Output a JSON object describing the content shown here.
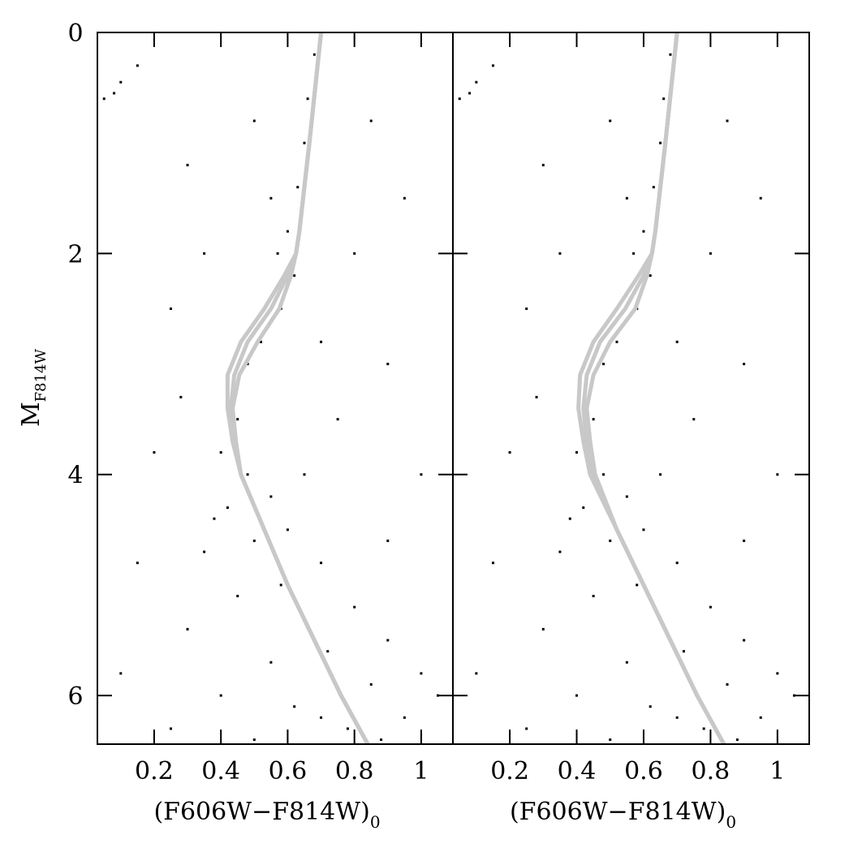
{
  "chart_data": [
    {
      "type": "scatter",
      "xlabel": "(F606W−F814W)",
      "xlabel_sub": "0",
      "ylabel": "M",
      "ylabel_sub": "F814W",
      "xlim": [
        0.03,
        1.095
      ],
      "ylim": [
        6.44,
        0
      ],
      "xticks": [
        0.2,
        0.4,
        0.6,
        0.8,
        1
      ],
      "yticks": [
        0,
        2,
        4,
        6
      ],
      "ytick_labels": true,
      "color": "#000000",
      "x": [
        0.45,
        0.4,
        0.48,
        0.55,
        0.42,
        0.6,
        0.5,
        0.35,
        0.7,
        0.58,
        0.45,
        0.8,
        0.65,
        0.3,
        0.9,
        0.72,
        0.55,
        1.0,
        0.85,
        0.4,
        0.62,
        0.95,
        0.78,
        0.25,
        1.05,
        0.5,
        0.88,
        0.7,
        0.52,
        0.48,
        0.58,
        0.62,
        0.6,
        0.63,
        0.65,
        0.66,
        0.68,
        0.57,
        0.55,
        0.05,
        0.1,
        0.15,
        0.08,
        0.25,
        0.8,
        0.9,
        0.3,
        0.85,
        0.2,
        1.0,
        0.15,
        0.75,
        0.35,
        0.95,
        0.5,
        0.1,
        0.28,
        0.7,
        0.65,
        0.38,
        0.9
      ],
      "y": [
        3.5,
        3.8,
        4.0,
        4.2,
        4.3,
        4.5,
        4.6,
        4.7,
        4.8,
        5.0,
        5.1,
        5.2,
        5.3,
        5.4,
        5.5,
        5.6,
        5.7,
        5.8,
        5.9,
        6.0,
        6.1,
        6.2,
        6.3,
        6.3,
        6.0,
        6.4,
        6.4,
        6.2,
        2.8,
        3.0,
        2.5,
        2.2,
        1.8,
        1.4,
        1.0,
        0.6,
        0.2,
        2.0,
        1.5,
        0.6,
        0.45,
        0.3,
        0.55,
        2.5,
        2.0,
        3.0,
        1.2,
        0.8,
        3.8,
        4.0,
        4.8,
        3.5,
        2.0,
        1.5,
        0.8,
        5.8,
        3.3,
        2.8,
        4.0,
        4.4,
        4.6
      ],
      "lines": [
        {
          "color": "#c8c8c8",
          "x": [
            0.7,
            0.665,
            0.635,
            0.625,
            0.59,
            0.53,
            0.46,
            0.42,
            0.42,
            0.435,
            0.46,
            0.53,
            0.6,
            0.68,
            0.76,
            0.84
          ],
          "y": [
            0,
            1,
            1.8,
            2.0,
            2.2,
            2.5,
            2.8,
            3.1,
            3.4,
            3.7,
            4.0,
            4.5,
            5.0,
            5.5,
            6.0,
            6.44
          ]
        },
        {
          "color": "#c8c8c8",
          "x": [
            0.7,
            0.665,
            0.635,
            0.625,
            0.6,
            0.55,
            0.48,
            0.44,
            0.43,
            0.44,
            0.46,
            0.53,
            0.6,
            0.68,
            0.76,
            0.84
          ],
          "y": [
            0,
            1,
            1.8,
            2.0,
            2.2,
            2.5,
            2.8,
            3.1,
            3.4,
            3.7,
            4.0,
            4.5,
            5.0,
            5.5,
            6.0,
            6.44
          ]
        },
        {
          "color": "#c8c8c8",
          "x": [
            0.7,
            0.665,
            0.635,
            0.625,
            0.61,
            0.575,
            0.51,
            0.455,
            0.435,
            0.445,
            0.46,
            0.53,
            0.6,
            0.68,
            0.76,
            0.84
          ],
          "y": [
            0,
            1,
            1.8,
            2.0,
            2.2,
            2.5,
            2.8,
            3.1,
            3.4,
            3.7,
            4.0,
            4.5,
            5.0,
            5.5,
            6.0,
            6.44
          ]
        }
      ]
    },
    {
      "type": "scatter",
      "xlabel": "(F606W−F814W)",
      "xlabel_sub": "0",
      "xlim": [
        0.03,
        1.095
      ],
      "ylim": [
        6.44,
        0
      ],
      "xticks": [
        0.2,
        0.4,
        0.6,
        0.8,
        1
      ],
      "yticks": [
        0,
        2,
        4,
        6
      ],
      "ytick_labels": false,
      "color": "#000000",
      "x": [
        0.45,
        0.4,
        0.48,
        0.55,
        0.42,
        0.6,
        0.5,
        0.35,
        0.7,
        0.58,
        0.45,
        0.8,
        0.65,
        0.3,
        0.9,
        0.72,
        0.55,
        1.0,
        0.85,
        0.4,
        0.62,
        0.95,
        0.78,
        0.25,
        1.05,
        0.5,
        0.88,
        0.7,
        0.52,
        0.48,
        0.58,
        0.62,
        0.6,
        0.63,
        0.65,
        0.66,
        0.68,
        0.57,
        0.55,
        0.05,
        0.1,
        0.15,
        0.08,
        0.25,
        0.8,
        0.9,
        0.3,
        0.85,
        0.2,
        1.0,
        0.15,
        0.75,
        0.35,
        0.95,
        0.5,
        0.1,
        0.28,
        0.7,
        0.65,
        0.38,
        0.9
      ],
      "y": [
        3.5,
        3.8,
        4.0,
        4.2,
        4.3,
        4.5,
        4.6,
        4.7,
        4.8,
        5.0,
        5.1,
        5.2,
        5.3,
        5.4,
        5.5,
        5.6,
        5.7,
        5.8,
        5.9,
        6.0,
        6.1,
        6.2,
        6.3,
        6.3,
        6.0,
        6.4,
        6.4,
        6.2,
        2.8,
        3.0,
        2.5,
        2.2,
        1.8,
        1.4,
        1.0,
        0.6,
        0.2,
        2.0,
        1.5,
        0.6,
        0.45,
        0.3,
        0.55,
        2.5,
        2.0,
        3.0,
        1.2,
        0.8,
        3.8,
        4.0,
        4.8,
        3.5,
        2.0,
        1.5,
        0.8,
        5.8,
        3.3,
        2.8,
        4.0,
        4.4,
        4.6
      ],
      "lines": [
        {
          "color": "#c8c8c8",
          "x": [
            0.7,
            0.665,
            0.635,
            0.625,
            0.585,
            0.52,
            0.45,
            0.41,
            0.405,
            0.42,
            0.44,
            0.52,
            0.6,
            0.68,
            0.76,
            0.84
          ],
          "y": [
            0,
            1,
            1.8,
            2.0,
            2.2,
            2.5,
            2.8,
            3.1,
            3.4,
            3.7,
            4.0,
            4.5,
            5.0,
            5.5,
            6.0,
            6.44
          ]
        },
        {
          "color": "#c8c8c8",
          "x": [
            0.7,
            0.665,
            0.635,
            0.625,
            0.6,
            0.545,
            0.47,
            0.43,
            0.42,
            0.43,
            0.45,
            0.52,
            0.6,
            0.68,
            0.76,
            0.84
          ],
          "y": [
            0,
            1,
            1.8,
            2.0,
            2.2,
            2.5,
            2.8,
            3.1,
            3.4,
            3.7,
            4.0,
            4.5,
            5.0,
            5.5,
            6.0,
            6.44
          ]
        },
        {
          "color": "#c8c8c8",
          "x": [
            0.7,
            0.665,
            0.635,
            0.625,
            0.61,
            0.575,
            0.5,
            0.45,
            0.43,
            0.44,
            0.455,
            0.52,
            0.6,
            0.68,
            0.76,
            0.84
          ],
          "y": [
            0,
            1,
            1.8,
            2.0,
            2.2,
            2.5,
            2.8,
            3.1,
            3.4,
            3.7,
            4.0,
            4.5,
            5.0,
            5.5,
            6.0,
            6.44
          ]
        }
      ]
    }
  ]
}
